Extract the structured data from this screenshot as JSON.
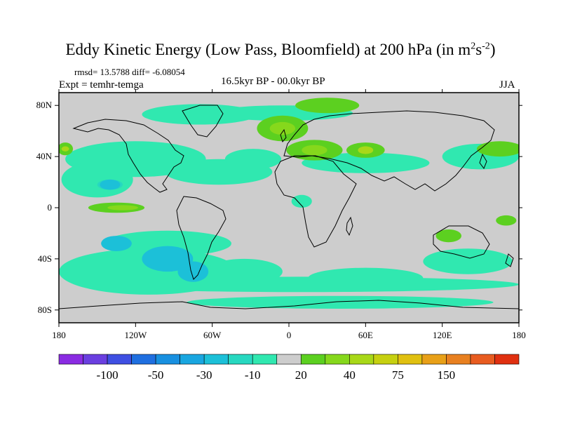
{
  "chart_data": {
    "type": "heatmap",
    "title_main": "Eddy Kinetic Energy (Low Pass, Bloomfield) at 200 hPa (in m",
    "title_sup1": "2",
    "title_mid": "s",
    "title_sup2": "-2",
    "title_end": ")",
    "stats": "rmsd= 13.5788 diff= -6.08054",
    "expt": "Expt = temhr-temga",
    "period": "16.5kyr BP - 00.0kyr BP",
    "season": "JJA",
    "xlim": [
      -180,
      180
    ],
    "ylim": [
      -90,
      90
    ],
    "x_ticks": [
      {
        "value": -180,
        "label": "180"
      },
      {
        "value": -120,
        "label": "120W"
      },
      {
        "value": -60,
        "label": "60W"
      },
      {
        "value": 0,
        "label": "0"
      },
      {
        "value": 60,
        "label": "60E"
      },
      {
        "value": 120,
        "label": "120E"
      },
      {
        "value": 180,
        "label": "180"
      }
    ],
    "y_ticks": [
      {
        "value": 80,
        "label": "80N"
      },
      {
        "value": 40,
        "label": "40N"
      },
      {
        "value": 0,
        "label": "0"
      },
      {
        "value": -40,
        "label": "40S"
      },
      {
        "value": -80,
        "label": "80S"
      }
    ],
    "background_color": "#cdcdcd",
    "colorbar": {
      "colors": [
        "#8a2be2",
        "#6a3fe0",
        "#3f4fe2",
        "#1f6fe0",
        "#1890e0",
        "#19a6e0",
        "#1cc0d8",
        "#27d8c0",
        "#30e8b0",
        "#cdcdcd",
        "#5cd020",
        "#86d81c",
        "#a8d818",
        "#c6d010",
        "#e0c010",
        "#e8a018",
        "#e88020",
        "#e85c20",
        "#e03010"
      ],
      "labels": [
        {
          "boundary": 2,
          "label": "-100"
        },
        {
          "boundary": 4,
          "label": "-50"
        },
        {
          "boundary": 6,
          "label": "-30"
        },
        {
          "boundary": 8,
          "label": "-10"
        },
        {
          "boundary": 10,
          "label": "20"
        },
        {
          "boundary": 12,
          "label": "40"
        },
        {
          "boundary": 14,
          "label": "75"
        },
        {
          "boundary": 16,
          "label": "150"
        }
      ]
    },
    "regions": [
      {
        "name": "north-pacific-cyan-band",
        "color": "#30e8b0",
        "lon": -120,
        "lat": 38,
        "rlon": 55,
        "rlat": 14
      },
      {
        "name": "east-pacific-cyan",
        "color": "#30e8b0",
        "lon": -150,
        "lat": 22,
        "rlon": 28,
        "rlat": 14
      },
      {
        "name": "subtropical-pacific-cyan-core",
        "color": "#27d8c0",
        "lon": -140,
        "lat": 18,
        "rlon": 10,
        "rlat": 4
      },
      {
        "name": "north-atlantic-cyan",
        "color": "#30e8b0",
        "lon": -55,
        "lat": 28,
        "rlon": 42,
        "rlat": 10
      },
      {
        "name": "north-atlantic-cyan-2",
        "color": "#30e8b0",
        "lon": -28,
        "lat": 38,
        "rlon": 22,
        "rlat": 8
      },
      {
        "name": "greenland-cyan",
        "color": "#30e8b0",
        "lon": -70,
        "lat": 73,
        "rlon": 45,
        "rlat": 8
      },
      {
        "name": "arctic-cyan",
        "color": "#30e8b0",
        "lon": -5,
        "lat": 74,
        "rlon": 55,
        "rlat": 6
      },
      {
        "name": "asia-cyan",
        "color": "#30e8b0",
        "lon": 60,
        "lat": 35,
        "rlon": 50,
        "rlat": 8
      },
      {
        "name": "west-pacific-cyan",
        "color": "#30e8b0",
        "lon": 150,
        "lat": 40,
        "rlon": 30,
        "rlat": 10
      },
      {
        "name": "southern-ocean-cyan-west",
        "color": "#30e8b0",
        "lon": -110,
        "lat": -50,
        "rlon": 70,
        "rlat": 18
      },
      {
        "name": "south-pacific-cyan",
        "color": "#30e8b0",
        "lon": -95,
        "lat": -28,
        "rlon": 50,
        "rlat": 10
      },
      {
        "name": "south-atlantic-cyan",
        "color": "#30e8b0",
        "lon": -35,
        "lat": -50,
        "rlon": 30,
        "rlat": 10
      },
      {
        "name": "southern-ocean-cyan-band",
        "color": "#30e8b0",
        "lon": 10,
        "lat": -60,
        "rlon": 170,
        "rlat": 6
      },
      {
        "name": "indian-ocean-cyan",
        "color": "#30e8b0",
        "lon": 60,
        "lat": -55,
        "rlon": 45,
        "rlat": 8
      },
      {
        "name": "australia-cyan",
        "color": "#30e8b0",
        "lon": 140,
        "lat": -42,
        "rlon": 35,
        "rlat": 10
      },
      {
        "name": "antarctic-cyan",
        "color": "#30e8b0",
        "lon": 40,
        "lat": -74,
        "rlon": 120,
        "rlat": 5
      },
      {
        "name": "west-africa-cyan",
        "color": "#30e8b0",
        "lon": 10,
        "lat": 5,
        "rlon": 8,
        "rlat": 5
      },
      {
        "name": "south-pacific-blue",
        "color": "#1cc0d8",
        "lon": -95,
        "lat": -40,
        "rlon": 20,
        "rlat": 10
      },
      {
        "name": "south-pacific-blue-2",
        "color": "#1cc0d8",
        "lon": -135,
        "lat": -28,
        "rlon": 12,
        "rlat": 6
      },
      {
        "name": "patagonia-blue",
        "color": "#1cc0d8",
        "lon": -75,
        "lat": -50,
        "rlon": 12,
        "rlat": 8
      },
      {
        "name": "east-pacific-blue",
        "color": "#1cc0d8",
        "lon": -140,
        "lat": 18,
        "rlon": 8,
        "rlat": 4
      },
      {
        "name": "europe-green",
        "color": "#5cd020",
        "lon": 20,
        "lat": 45,
        "rlon": 22,
        "rlat": 8
      },
      {
        "name": "north-atlantic-green",
        "color": "#5cd020",
        "lon": -5,
        "lat": 62,
        "rlon": 20,
        "rlat": 10
      },
      {
        "name": "scandinavia-green",
        "color": "#5cd020",
        "lon": 30,
        "lat": 80,
        "rlon": 25,
        "rlat": 6
      },
      {
        "name": "central-asia-green",
        "color": "#5cd020",
        "lon": 60,
        "lat": 45,
        "rlon": 15,
        "rlat": 6
      },
      {
        "name": "west-pacific-green",
        "color": "#5cd020",
        "lon": 165,
        "lat": 46,
        "rlon": 18,
        "rlat": 6
      },
      {
        "name": "nw-pacific-green",
        "color": "#5cd020",
        "lon": -175,
        "lat": 46,
        "rlon": 6,
        "rlat": 5
      },
      {
        "name": "equatorial-pacific-green",
        "color": "#5cd020",
        "lon": -135,
        "lat": 0,
        "rlon": 22,
        "rlat": 4
      },
      {
        "name": "tasman-green",
        "color": "#5cd020",
        "lon": 125,
        "lat": -22,
        "rlon": 10,
        "rlat": 5
      },
      {
        "name": "sw-pacific-green",
        "color": "#5cd020",
        "lon": 170,
        "lat": -10,
        "rlon": 8,
        "rlat": 4
      },
      {
        "name": "europe-yellow-green",
        "color": "#86d81c",
        "lon": 20,
        "lat": 45,
        "rlon": 10,
        "rlat": 4
      },
      {
        "name": "scandinavia-yellow-green",
        "color": "#86d81c",
        "lon": -5,
        "lat": 62,
        "rlon": 10,
        "rlat": 5
      },
      {
        "name": "asia-yellow-green",
        "color": "#a8d818",
        "lon": 60,
        "lat": 45,
        "rlon": 6,
        "rlat": 3
      },
      {
        "name": "pacific-yellow-green",
        "color": "#86d81c",
        "lon": -130,
        "lat": 0,
        "rlon": 12,
        "rlat": 2
      },
      {
        "name": "nw-pacific-yellow",
        "color": "#a8d818",
        "lon": -175,
        "lat": 46,
        "rlon": 3,
        "rlat": 2
      }
    ]
  }
}
